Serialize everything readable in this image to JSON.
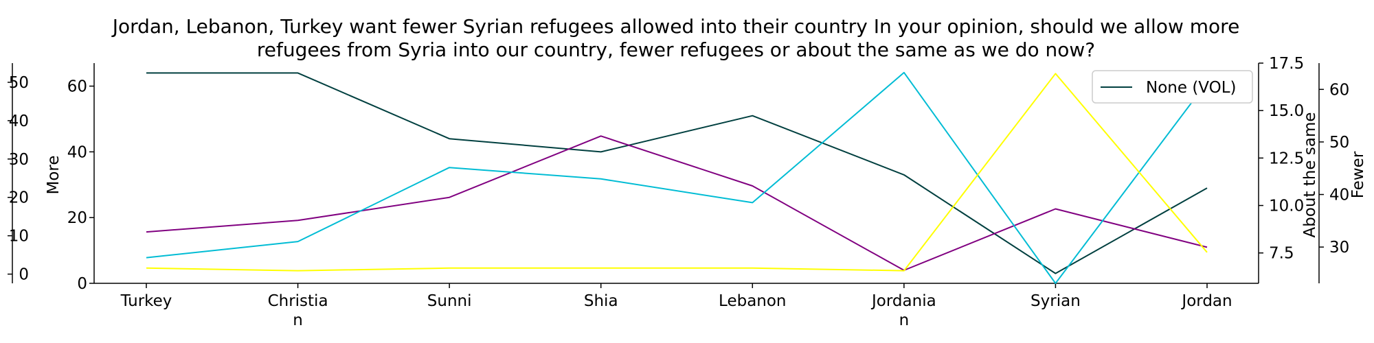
{
  "chart_data": {
    "type": "line",
    "title": "Jordan, Lebanon, Turkey want fewer Syrian refugees allowed into their country In your opinion, should we allow more refugees from Syria into our country, fewer refugees or about the same as we do now?",
    "title_lines": [
      "Jordan, Lebanon, Turkey want fewer Syrian refugees allowed into their country In your opinion, should we allow more",
      "refugees from Syria into our country, fewer refugees or about the same as we do now?"
    ],
    "categories": [
      "Turkey",
      "Christian",
      "Sunni",
      "Shia",
      "Lebanon",
      "Jordanian",
      "Syrian",
      "Jordan"
    ],
    "category_labels": [
      [
        "Turkey"
      ],
      [
        "Christia",
        "n"
      ],
      [
        "Sunni"
      ],
      [
        "Shia"
      ],
      [
        "Lebanon"
      ],
      [
        "Jordania",
        "n"
      ],
      [
        "Syrian"
      ],
      [
        "Jordan"
      ]
    ],
    "series": [
      {
        "name": "None (VOL)",
        "axis": "left_main",
        "color": "#003f3f",
        "values": [
          64,
          64,
          44,
          40,
          51,
          33,
          3,
          29
        ]
      },
      {
        "name": "",
        "axis": "left_offset",
        "color": "#800080",
        "values": [
          11,
          14,
          20,
          36,
          23,
          1,
          17,
          7
        ]
      },
      {
        "name": "",
        "axis": "right_inner",
        "color": "#00bcd4",
        "values": [
          7.25,
          8.1,
          12.0,
          11.4,
          10.15,
          17.0,
          5.9,
          16.5
        ]
      },
      {
        "name": "",
        "axis": "right_outer",
        "color": "#ffff00",
        "values": [
          26,
          25.5,
          26,
          26,
          26,
          25.5,
          63,
          29
        ]
      }
    ],
    "axes": {
      "left_main": {
        "label": "More",
        "ticks": [
          0,
          20,
          40,
          60
        ],
        "range": [
          0,
          67
        ]
      },
      "left_offset": {
        "label": "",
        "ticks": [
          0,
          10,
          20,
          30,
          40,
          50
        ],
        "range": [
          -2.4,
          55
        ]
      },
      "right_inner": {
        "label": "About the same",
        "ticks": [
          7.5,
          10.0,
          12.5,
          15.0,
          17.5
        ],
        "range": [
          5.9,
          17.5
        ]
      },
      "right_outer": {
        "label": "Fewer",
        "ticks": [
          30,
          40,
          50,
          60
        ],
        "range": [
          23.1,
          65
        ]
      }
    },
    "legend": {
      "entries": [
        "None (VOL)"
      ],
      "placement": "top-right"
    },
    "grid": false
  }
}
